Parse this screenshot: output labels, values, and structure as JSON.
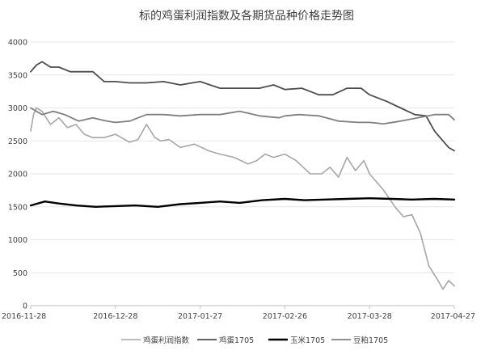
{
  "chart_data": {
    "type": "line",
    "title": "标的鸡蛋利润指数及各期货品种价格走势图",
    "xlabel": "",
    "ylabel": "",
    "ylim": [
      0,
      4000
    ],
    "yticks": [
      0,
      500,
      1000,
      1500,
      2000,
      2500,
      3000,
      3500,
      4000
    ],
    "xlim": [
      "2016-11-28",
      "2017-04-27"
    ],
    "xticks": [
      "2016-11-28",
      "2016-12-28",
      "2017-01-27",
      "2017-02-26",
      "2017-03-28",
      "2017-04-27"
    ],
    "grid": true,
    "legend_position": "bottom",
    "series": [
      {
        "name": "鸡蛋利润指数",
        "color": "#a6a6a6",
        "x": [
          "2016-11-28",
          "2016-11-29",
          "2016-11-30",
          "2016-12-02",
          "2016-12-05",
          "2016-12-08",
          "2016-12-11",
          "2016-12-14",
          "2016-12-17",
          "2016-12-20",
          "2016-12-24",
          "2016-12-28",
          "2017-01-02",
          "2017-01-05",
          "2017-01-08",
          "2017-01-11",
          "2017-01-13",
          "2017-01-16",
          "2017-01-20",
          "2017-01-25",
          "2017-01-30",
          "2017-02-03",
          "2017-02-08",
          "2017-02-13",
          "2017-02-16",
          "2017-02-19",
          "2017-02-22",
          "2017-02-26",
          "2017-03-02",
          "2017-03-07",
          "2017-03-11",
          "2017-03-14",
          "2017-03-17",
          "2017-03-20",
          "2017-03-23",
          "2017-03-26",
          "2017-03-28",
          "2017-04-02",
          "2017-04-06",
          "2017-04-09",
          "2017-04-12",
          "2017-04-15",
          "2017-04-18",
          "2017-04-21",
          "2017-04-23",
          "2017-04-25",
          "2017-04-27"
        ],
        "values": [
          2650,
          2900,
          3000,
          2950,
          2750,
          2850,
          2700,
          2750,
          2600,
          2550,
          2550,
          2600,
          2480,
          2520,
          2750,
          2550,
          2500,
          2520,
          2400,
          2450,
          2350,
          2300,
          2250,
          2150,
          2200,
          2300,
          2250,
          2300,
          2200,
          2000,
          2000,
          2100,
          1950,
          2250,
          2050,
          2200,
          2000,
          1750,
          1500,
          1350,
          1380,
          1100,
          600,
          400,
          250,
          380,
          300
        ]
      },
      {
        "name": "鸡蛋1705",
        "color": "#4d4d4d",
        "x": [
          "2016-11-28",
          "2016-11-30",
          "2016-12-02",
          "2016-12-05",
          "2016-12-08",
          "2016-12-12",
          "2016-12-16",
          "2016-12-20",
          "2016-12-24",
          "2016-12-28",
          "2017-01-02",
          "2017-01-08",
          "2017-01-14",
          "2017-01-20",
          "2017-01-27",
          "2017-02-03",
          "2017-02-10",
          "2017-02-17",
          "2017-02-22",
          "2017-02-26",
          "2017-03-04",
          "2017-03-10",
          "2017-03-15",
          "2017-03-20",
          "2017-03-25",
          "2017-03-28",
          "2017-04-03",
          "2017-04-08",
          "2017-04-13",
          "2017-04-17",
          "2017-04-20",
          "2017-04-23",
          "2017-04-25",
          "2017-04-27"
        ],
        "values": [
          3550,
          3650,
          3700,
          3620,
          3620,
          3550,
          3550,
          3550,
          3400,
          3400,
          3380,
          3380,
          3400,
          3350,
          3400,
          3300,
          3300,
          3300,
          3350,
          3280,
          3300,
          3200,
          3200,
          3300,
          3300,
          3200,
          3100,
          3000,
          2900,
          2880,
          2650,
          2500,
          2400,
          2350
        ]
      },
      {
        "name": "玉米1705",
        "color": "#000000",
        "x": [
          "2016-11-28",
          "2016-12-03",
          "2016-12-08",
          "2016-12-14",
          "2016-12-21",
          "2016-12-28",
          "2017-01-04",
          "2017-01-12",
          "2017-01-20",
          "2017-01-27",
          "2017-02-03",
          "2017-02-10",
          "2017-02-18",
          "2017-02-26",
          "2017-03-05",
          "2017-03-12",
          "2017-03-20",
          "2017-03-28",
          "2017-04-05",
          "2017-04-12",
          "2017-04-20",
          "2017-04-27"
        ],
        "values": [
          1520,
          1580,
          1550,
          1520,
          1500,
          1510,
          1520,
          1500,
          1540,
          1560,
          1580,
          1560,
          1600,
          1620,
          1600,
          1610,
          1620,
          1630,
          1620,
          1610,
          1620,
          1610
        ]
      },
      {
        "name": "豆粕1705",
        "color": "#808080",
        "x": [
          "2016-11-28",
          "2016-12-02",
          "2016-12-06",
          "2016-12-10",
          "2016-12-15",
          "2016-12-20",
          "2016-12-25",
          "2016-12-28",
          "2017-01-02",
          "2017-01-08",
          "2017-01-14",
          "2017-01-20",
          "2017-01-27",
          "2017-02-03",
          "2017-02-10",
          "2017-02-17",
          "2017-02-24",
          "2017-02-26",
          "2017-03-03",
          "2017-03-10",
          "2017-03-17",
          "2017-03-24",
          "2017-03-28",
          "2017-04-02",
          "2017-04-08",
          "2017-04-14",
          "2017-04-20",
          "2017-04-25",
          "2017-04-27"
        ],
        "values": [
          3000,
          2900,
          2950,
          2900,
          2800,
          2850,
          2800,
          2780,
          2800,
          2900,
          2900,
          2880,
          2900,
          2900,
          2950,
          2880,
          2850,
          2880,
          2900,
          2880,
          2800,
          2780,
          2780,
          2760,
          2800,
          2850,
          2900,
          2900,
          2820
        ]
      }
    ]
  }
}
